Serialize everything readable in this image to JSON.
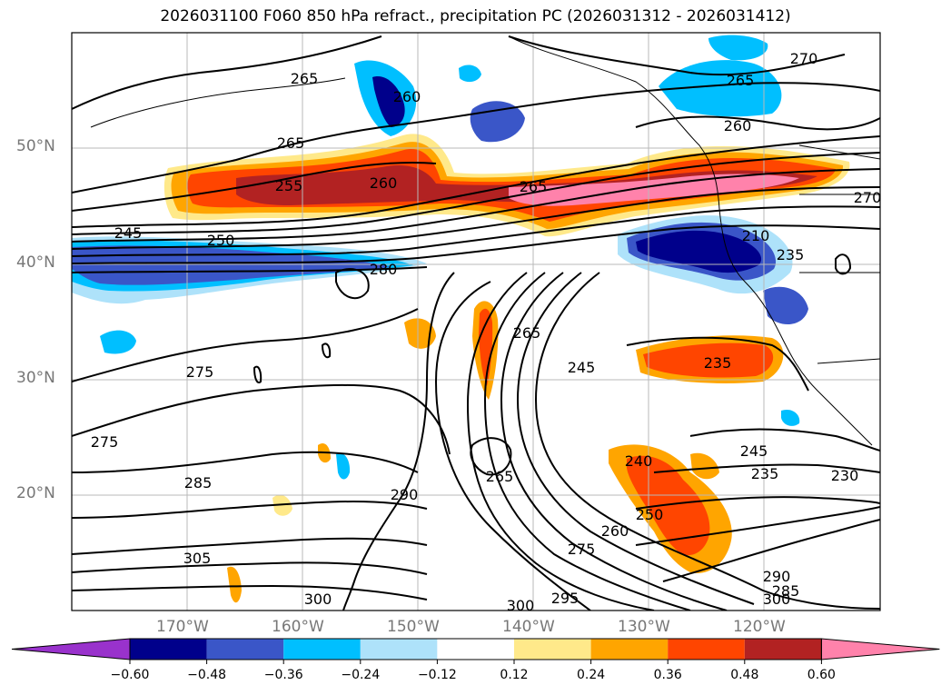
{
  "title": "2026031100 F060 850 hPa refract., precipitation PC (2026031312 - 2026031412)",
  "latitude_labels": [
    "50°N",
    "40°N",
    "30°N",
    "20°N"
  ],
  "longitude_labels": [
    "170°W",
    "160°W",
    "150°W",
    "140°W",
    "130°W",
    "120°W"
  ],
  "colorbar": {
    "ticks": [
      "−0.60",
      "−0.48",
      "−0.36",
      "−0.24",
      "−0.12",
      "0.12",
      "0.24",
      "0.36",
      "0.48",
      "0.60"
    ],
    "colors": [
      "#9932cc",
      "#00008b",
      "#3a56c8",
      "#00bfff",
      "#aee2fa",
      "#ffffff",
      "#ffe98a",
      "#ffa500",
      "#ff4500",
      "#b22222",
      "#ff82ab"
    ]
  },
  "contour_labels": [
    "270",
    "265",
    "260",
    "265",
    "260",
    "265",
    "255",
    "260",
    "265",
    "270",
    "245",
    "250",
    "280",
    "210",
    "235",
    "265",
    "245",
    "235",
    "275",
    "275",
    "285",
    "290",
    "265",
    "240",
    "245",
    "235",
    "230",
    "250",
    "260",
    "275",
    "305",
    "300",
    "300",
    "295",
    "290",
    "285",
    "300"
  ]
}
